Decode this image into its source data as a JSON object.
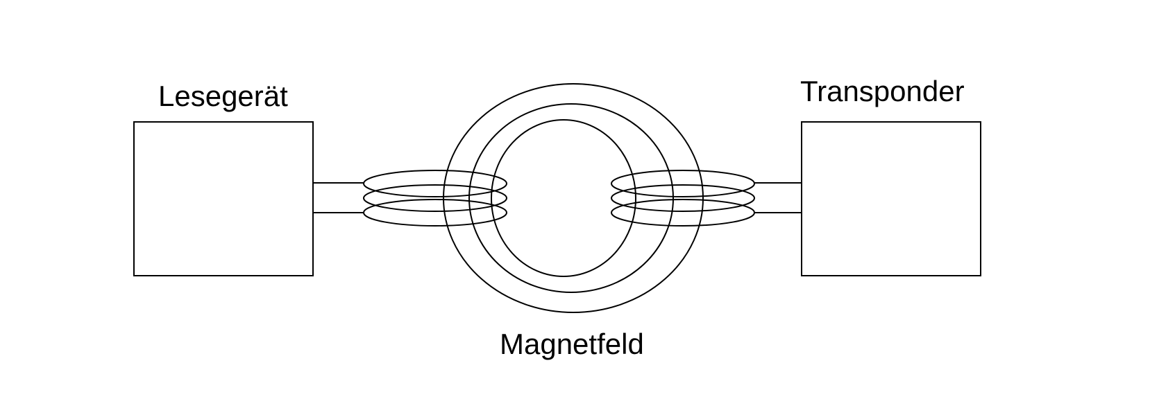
{
  "labels": {
    "reader": "Lesegerät",
    "transponder": "Transponder",
    "field": "Magnetfeld"
  },
  "colors": {
    "stroke": "#000000",
    "background": "#ffffff"
  }
}
